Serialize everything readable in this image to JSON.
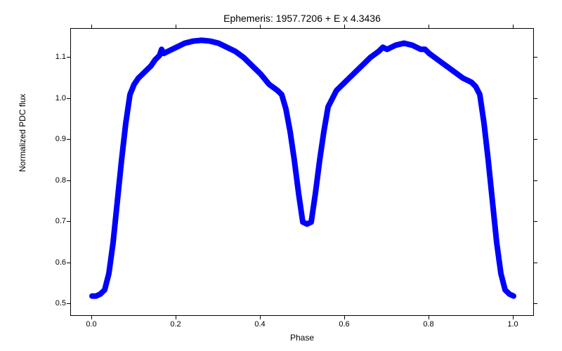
{
  "chart": {
    "type": "scatter",
    "title": "Ephemeris: 1957.7206 + E x 4.3436",
    "xlabel": "Phase",
    "ylabel": "Normalized PDC flux",
    "title_fontsize": 14,
    "label_fontsize": 12,
    "tick_fontsize": 11,
    "xlim": [
      -0.05,
      1.05
    ],
    "ylim": [
      0.47,
      1.17
    ],
    "xticks": [
      0.0,
      0.2,
      0.4,
      0.6,
      0.8,
      1.0
    ],
    "yticks": [
      0.5,
      0.6,
      0.7,
      0.8,
      0.9,
      1.0,
      1.1
    ],
    "xtick_labels": [
      "0.0",
      "0.2",
      "0.4",
      "0.6",
      "0.8",
      "1.0"
    ],
    "ytick_labels": [
      "0.5",
      "0.6",
      "0.7",
      "0.8",
      "0.9",
      "1.0",
      "1.1"
    ],
    "background_color": "#ffffff",
    "border_color": "#000000",
    "text_color": "#000000",
    "series": {
      "color": "#0000ff",
      "marker": "circle",
      "marker_size": 3,
      "line_width": 8,
      "data_x": [
        0.0,
        0.01,
        0.02,
        0.03,
        0.04,
        0.05,
        0.06,
        0.07,
        0.08,
        0.09,
        0.1,
        0.11,
        0.12,
        0.13,
        0.14,
        0.15,
        0.16,
        0.165,
        0.17,
        0.18,
        0.2,
        0.22,
        0.24,
        0.26,
        0.28,
        0.3,
        0.32,
        0.34,
        0.36,
        0.38,
        0.4,
        0.42,
        0.44,
        0.45,
        0.46,
        0.47,
        0.48,
        0.49,
        0.5,
        0.51,
        0.52,
        0.53,
        0.54,
        0.55,
        0.56,
        0.58,
        0.6,
        0.62,
        0.64,
        0.66,
        0.68,
        0.69,
        0.7,
        0.72,
        0.74,
        0.76,
        0.78,
        0.79,
        0.8,
        0.82,
        0.84,
        0.86,
        0.88,
        0.9,
        0.91,
        0.92,
        0.93,
        0.94,
        0.95,
        0.96,
        0.97,
        0.98,
        0.99,
        1.0
      ],
      "data_y": [
        0.52,
        0.52,
        0.525,
        0.535,
        0.575,
        0.65,
        0.75,
        0.85,
        0.94,
        1.01,
        1.035,
        1.05,
        1.06,
        1.07,
        1.08,
        1.095,
        1.105,
        1.12,
        1.11,
        1.115,
        1.125,
        1.135,
        1.14,
        1.142,
        1.14,
        1.135,
        1.125,
        1.115,
        1.1,
        1.08,
        1.06,
        1.035,
        1.02,
        1.01,
        0.975,
        0.92,
        0.85,
        0.77,
        0.7,
        0.695,
        0.7,
        0.77,
        0.85,
        0.92,
        0.98,
        1.02,
        1.04,
        1.06,
        1.08,
        1.1,
        1.115,
        1.125,
        1.12,
        1.13,
        1.135,
        1.13,
        1.12,
        1.12,
        1.11,
        1.095,
        1.08,
        1.065,
        1.05,
        1.04,
        1.03,
        1.01,
        0.94,
        0.85,
        0.75,
        0.65,
        0.575,
        0.535,
        0.525,
        0.52
      ]
    }
  }
}
